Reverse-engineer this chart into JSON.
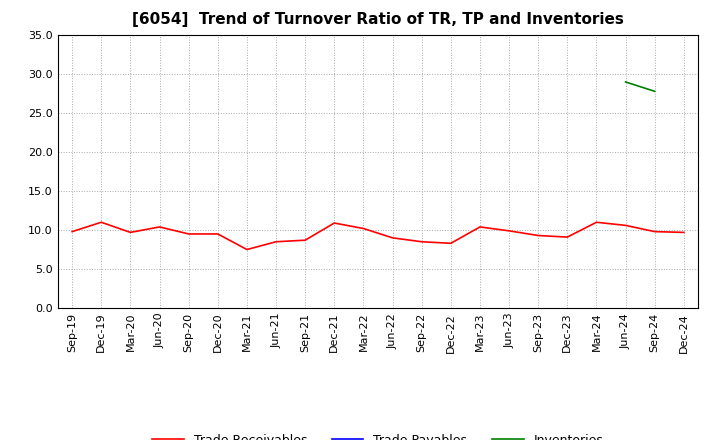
{
  "title": "[6054]  Trend of Turnover Ratio of TR, TP and Inventories",
  "x_labels": [
    "Sep-19",
    "Dec-19",
    "Mar-20",
    "Jun-20",
    "Sep-20",
    "Dec-20",
    "Mar-21",
    "Jun-21",
    "Sep-21",
    "Dec-21",
    "Mar-22",
    "Jun-22",
    "Sep-22",
    "Dec-22",
    "Mar-23",
    "Jun-23",
    "Sep-23",
    "Dec-23",
    "Mar-24",
    "Jun-24",
    "Sep-24",
    "Dec-24"
  ],
  "trade_receivables": [
    9.8,
    11.0,
    9.7,
    10.4,
    9.5,
    9.5,
    7.5,
    8.5,
    8.7,
    10.9,
    10.2,
    9.0,
    8.5,
    8.3,
    10.4,
    9.9,
    9.3,
    9.1,
    11.0,
    10.6,
    9.8,
    9.7
  ],
  "trade_payables": [
    null,
    null,
    null,
    null,
    null,
    null,
    null,
    null,
    null,
    null,
    null,
    null,
    null,
    null,
    null,
    null,
    null,
    null,
    null,
    null,
    null,
    null
  ],
  "inventories": [
    null,
    null,
    null,
    null,
    null,
    null,
    null,
    null,
    null,
    null,
    null,
    null,
    null,
    null,
    null,
    null,
    null,
    null,
    null,
    29.0,
    27.8,
    null
  ],
  "ylim": [
    0.0,
    35.0
  ],
  "yticks": [
    0.0,
    5.0,
    10.0,
    15.0,
    20.0,
    25.0,
    30.0,
    35.0
  ],
  "tr_color": "#FF0000",
  "tp_color": "#0000FF",
  "inv_color": "#008000",
  "background_color": "#FFFFFF",
  "grid_color": "#AAAAAA",
  "title_fontsize": 11,
  "tick_fontsize": 8,
  "legend_fontsize": 9
}
